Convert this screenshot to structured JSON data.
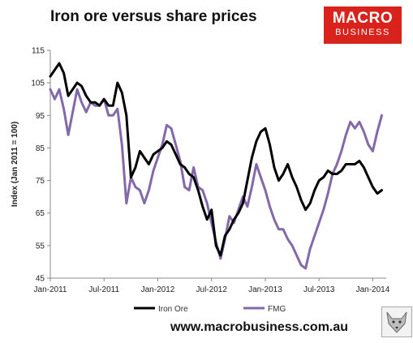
{
  "title": "Iron ore versus share prices",
  "logo": {
    "line1": "MACRO",
    "line2": "BUSINESS"
  },
  "footer_url": "www.macrobusiness.com.au",
  "colors": {
    "iron_ore": "#000000",
    "fmg": "#8469aa",
    "axis": "#888888",
    "logo_bg": "#d9221b"
  },
  "chart_data": {
    "type": "line",
    "title": "Iron ore versus share prices",
    "ylabel": "Index (Jan 2011 = 100)",
    "xlabel": "",
    "ylim": [
      45,
      115
    ],
    "yticks": [
      45,
      55,
      65,
      75,
      85,
      95,
      105,
      115
    ],
    "x_ticks": [
      "Jan-2011",
      "Jul-2011",
      "Jan-2012",
      "Jul-2012",
      "Jan-2013",
      "Jul-2013",
      "Jan-2014"
    ],
    "x_tick_positions": [
      0,
      6,
      12,
      18,
      24,
      30,
      36
    ],
    "xlim": [
      0,
      37.5
    ],
    "grid": false,
    "legend_position": "bottom",
    "series": [
      {
        "name": "Iron Ore",
        "x": [
          0,
          0.5,
          1,
          1.5,
          2,
          2.5,
          3,
          3.5,
          4,
          4.5,
          5,
          5.5,
          6,
          6.5,
          7,
          7.5,
          8,
          8.5,
          9,
          9.5,
          10,
          10.5,
          11,
          11.5,
          12,
          12.5,
          13,
          13.5,
          14,
          14.5,
          15,
          15.5,
          16,
          16.5,
          17,
          17.5,
          18,
          18.5,
          19,
          19.5,
          20,
          20.5,
          21,
          21.5,
          22,
          22.5,
          23,
          23.5,
          24,
          24.5,
          25,
          25.5,
          26,
          26.5,
          27,
          27.5,
          28,
          28.5,
          29,
          29.5,
          30,
          30.5,
          31,
          31.5,
          32,
          32.5,
          33,
          33.5,
          34,
          34.5,
          35,
          35.5,
          36,
          36.5,
          37
        ],
        "values": [
          107,
          109,
          111,
          108,
          101,
          103,
          105,
          104,
          101,
          99,
          99,
          98,
          100,
          98,
          98,
          105,
          102,
          95,
          76,
          79,
          84,
          82,
          80,
          83,
          84,
          85,
          87,
          86,
          83,
          80,
          79,
          77,
          76,
          72,
          67,
          63,
          66,
          55,
          52,
          58,
          60,
          63,
          65,
          68,
          75,
          82,
          87,
          90,
          91,
          86,
          79,
          75,
          77,
          80,
          76,
          73,
          69,
          66,
          68,
          72,
          75,
          76,
          78,
          77,
          77,
          78,
          80,
          80,
          80,
          81,
          79,
          76,
          73,
          71,
          72
        ]
      },
      {
        "name": "FMG",
        "x": [
          0,
          0.5,
          1,
          1.5,
          2,
          2.5,
          3,
          3.5,
          4,
          4.5,
          5,
          5.5,
          6,
          6.5,
          7,
          7.5,
          8,
          8.5,
          9,
          9.5,
          10,
          10.5,
          11,
          11.5,
          12,
          12.5,
          13,
          13.5,
          14,
          14.5,
          15,
          15.5,
          16,
          16.5,
          17,
          17.5,
          18,
          18.5,
          19,
          19.5,
          20,
          20.5,
          21,
          21.5,
          22,
          22.5,
          23,
          23.5,
          24,
          24.5,
          25,
          25.5,
          26,
          26.5,
          27,
          27.5,
          28,
          28.5,
          29,
          29.5,
          30,
          30.5,
          31,
          31.5,
          32,
          32.5,
          33,
          33.5,
          34,
          34.5,
          35,
          35.5,
          36,
          36.5,
          37
        ],
        "values": [
          103,
          100,
          103,
          97,
          89,
          96,
          103,
          99,
          96,
          99,
          98,
          98,
          100,
          95,
          95,
          97,
          86,
          68,
          76,
          73,
          72,
          68,
          72,
          78,
          82,
          86,
          92,
          91,
          86,
          81,
          73,
          72,
          79,
          73,
          72,
          68,
          62,
          56,
          51,
          57,
          64,
          62,
          66,
          70,
          67,
          73,
          80,
          76,
          72,
          67,
          63,
          60,
          60,
          57,
          55,
          52,
          49,
          48,
          54,
          58,
          62,
          66,
          71,
          77,
          80,
          84,
          89,
          93,
          91,
          93,
          90,
          86,
          84,
          90,
          95
        ]
      }
    ]
  }
}
